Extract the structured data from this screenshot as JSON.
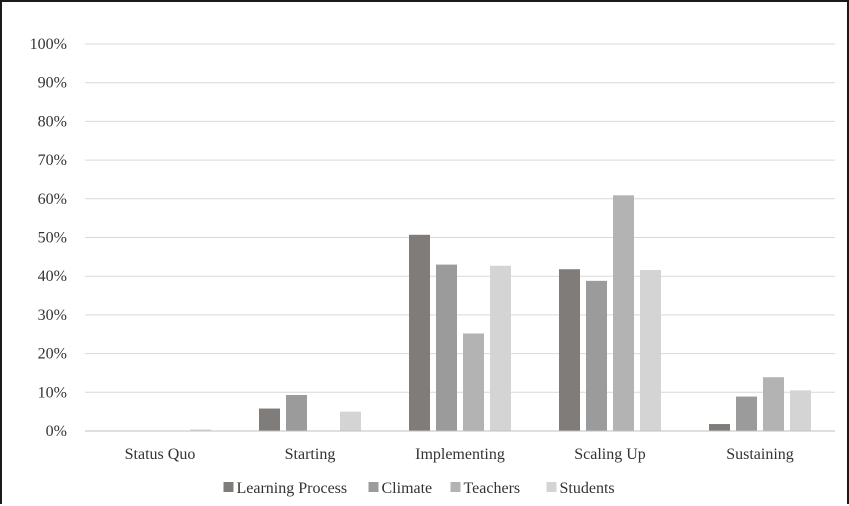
{
  "chart_data": {
    "type": "bar",
    "title": "",
    "xlabel": "",
    "ylabel": "",
    "ylim": [
      0,
      100
    ],
    "y_ticks": [
      "0%",
      "10%",
      "20%",
      "30%",
      "40%",
      "50%",
      "60%",
      "70%",
      "80%",
      "90%",
      "100%"
    ],
    "y_tick_values": [
      0,
      10,
      20,
      30,
      40,
      50,
      60,
      70,
      80,
      90,
      100
    ],
    "categories": [
      "Status Quo",
      "Starting",
      "Implementing",
      "Scaling Up",
      "Sustaining"
    ],
    "grid": true,
    "legend_position": "bottom",
    "series": [
      {
        "name": "Learning Process",
        "color": "#7f7c79",
        "values": [
          0,
          5.8,
          50.7,
          41.8,
          1.8
        ]
      },
      {
        "name": "Climate",
        "color": "#9b9b9b",
        "values": [
          0,
          9.3,
          43.0,
          38.8,
          8.9
        ]
      },
      {
        "name": "Teachers",
        "color": "#b3b3b3",
        "values": [
          0,
          0,
          25.2,
          60.9,
          13.9
        ]
      },
      {
        "name": "Students",
        "color": "#d4d4d4",
        "values": [
          0.4,
          5.0,
          42.7,
          41.6,
          10.5
        ]
      }
    ]
  }
}
